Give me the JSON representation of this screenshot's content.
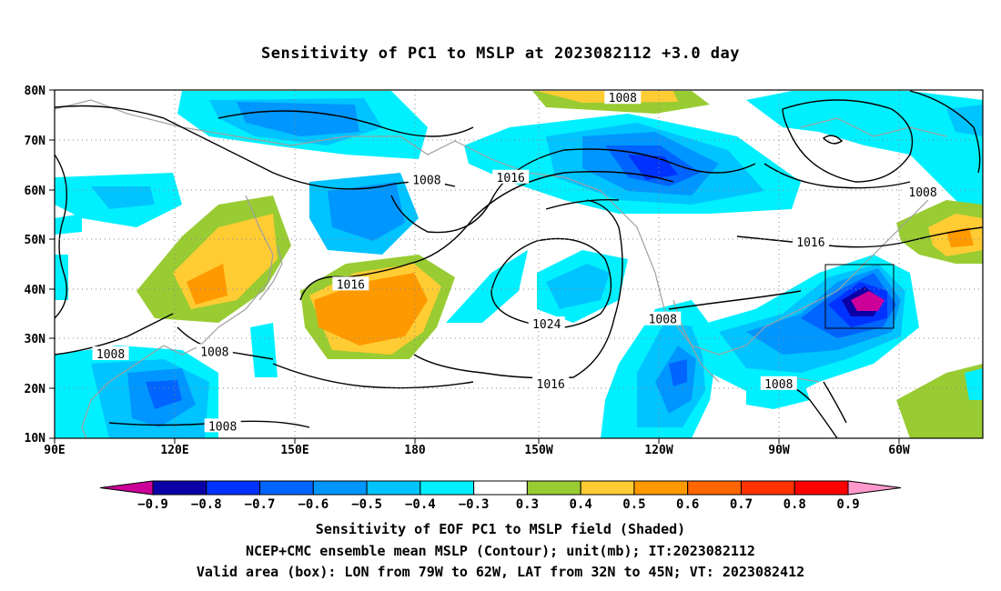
{
  "title": "Sensitivity of PC1 to MSLP at 2023082112 +3.0 day",
  "map": {
    "lat_labels": [
      "80N",
      "70N",
      "60N",
      "50N",
      "40N",
      "30N",
      "20N",
      "10N"
    ],
    "lon_labels": [
      "90E",
      "120E",
      "150E",
      "180",
      "150W",
      "120W",
      "90W",
      "60W"
    ],
    "extent": {
      "lon_min": 90,
      "lon_max": 322,
      "lat_min": 10,
      "lat_max": 80
    },
    "box": {
      "lon_from": "79W",
      "lon_to": "62W",
      "lat_from": "32N",
      "lat_to": "45N"
    },
    "contour_labels": [
      {
        "text": "1008",
        "lon": 232,
        "lat": 78.5
      },
      {
        "text": "1008",
        "lon": 183,
        "lat": 62
      },
      {
        "text": "1016",
        "lon": 204,
        "lat": 62.5
      },
      {
        "text": "1008",
        "lon": 307,
        "lat": 59.5
      },
      {
        "text": "1016",
        "lon": 279,
        "lat": 49.5
      },
      {
        "text": "1016",
        "lon": 164,
        "lat": 41
      },
      {
        "text": "1024",
        "lon": 213,
        "lat": 33
      },
      {
        "text": "1008",
        "lon": 242,
        "lat": 34
      },
      {
        "text": "1008",
        "lon": 104,
        "lat": 27
      },
      {
        "text": "1008",
        "lon": 130,
        "lat": 27.5
      },
      {
        "text": "1016",
        "lon": 214,
        "lat": 21
      },
      {
        "text": "1008",
        "lon": 271,
        "lat": 21
      },
      {
        "text": "1008",
        "lon": 132,
        "lat": 12.5
      }
    ]
  },
  "colorbar": {
    "labels": [
      "-0.9",
      "-0.8",
      "-0.7",
      "-0.6",
      "-0.5",
      "-0.4",
      "-0.3",
      "0.3",
      "0.4",
      "0.5",
      "0.6",
      "0.7",
      "0.8",
      "0.9"
    ],
    "colors": [
      "#0b00a6",
      "#0032ff",
      "#0064ff",
      "#0096ff",
      "#00c4ff",
      "#00f0ff",
      "#ffffff",
      "#99cc33",
      "#ffcc33",
      "#ff9900",
      "#ff6600",
      "#ff3300",
      "#ff0000"
    ],
    "under_color": "#cc0099",
    "over_color": "#ff99cc"
  },
  "captions": [
    "Sensitivity of EOF PC1 to MSLP field (Shaded)",
    "NCEP+CMC ensemble mean MSLP (Contour); unit(mb); IT:2023082112",
    "Valid area (box): LON from 79W to 62W, LAT from 32N to 45N; VT: 2023082412"
  ]
}
